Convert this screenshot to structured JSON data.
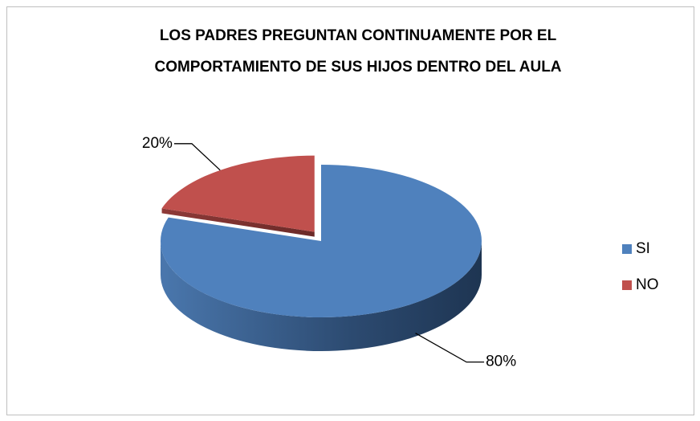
{
  "chart_data": {
    "type": "pie",
    "title": [
      "LOS PADRES PREGUNTAN CONTINUAMENTE POR EL",
      "COMPORTAMIENTO DE SUS HIJOS DENTRO DEL AULA"
    ],
    "categories": [
      "SI",
      "NO"
    ],
    "values": [
      80,
      20
    ],
    "value_labels": [
      "80%",
      "20%"
    ],
    "colors": [
      "#4f81bd",
      "#c0504d"
    ],
    "legend": "right"
  }
}
